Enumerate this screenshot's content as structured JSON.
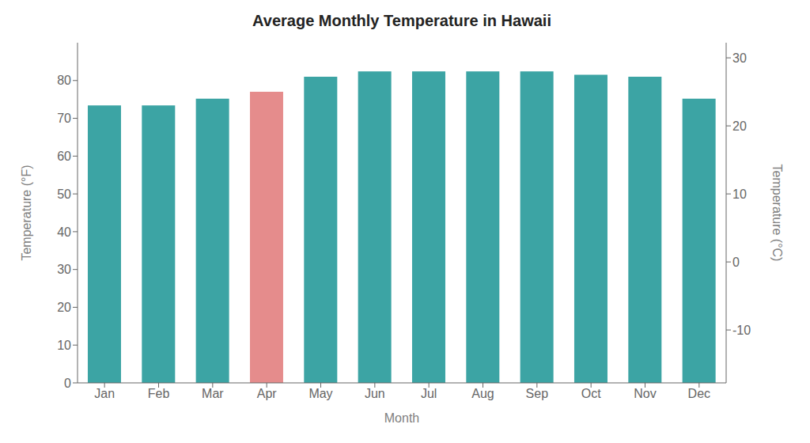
{
  "chart_data": {
    "type": "bar",
    "title": "Average Monthly Temperature in Hawaii",
    "categories": [
      "Jan",
      "Feb",
      "Mar",
      "Apr",
      "May",
      "Jun",
      "Jul",
      "Aug",
      "Sep",
      "Oct",
      "Nov",
      "Dec"
    ],
    "values": [
      73.4,
      73.4,
      75.2,
      77.0,
      81.0,
      82.4,
      82.4,
      82.4,
      82.4,
      81.5,
      81.0,
      75.2
    ],
    "colors": [
      "#1A9494",
      "#1A9494",
      "#1A9494",
      "#E07878",
      "#1A9494",
      "#1A9494",
      "#1A9494",
      "#1A9494",
      "#1A9494",
      "#1A9494",
      "#1A9494",
      "#1A9494"
    ],
    "xlabel": "Month",
    "ylabel": "Temperature (°F)",
    "y2label": "Temperature (°C)",
    "ylim": [
      0,
      90
    ],
    "yticks": [
      0,
      10,
      20,
      30,
      40,
      50,
      60,
      70,
      80
    ],
    "y2lim": [
      -17.77777777777778,
      32.22222222222222
    ],
    "y2ticks": [
      -10,
      0,
      10,
      20,
      30
    ],
    "grid": false
  }
}
